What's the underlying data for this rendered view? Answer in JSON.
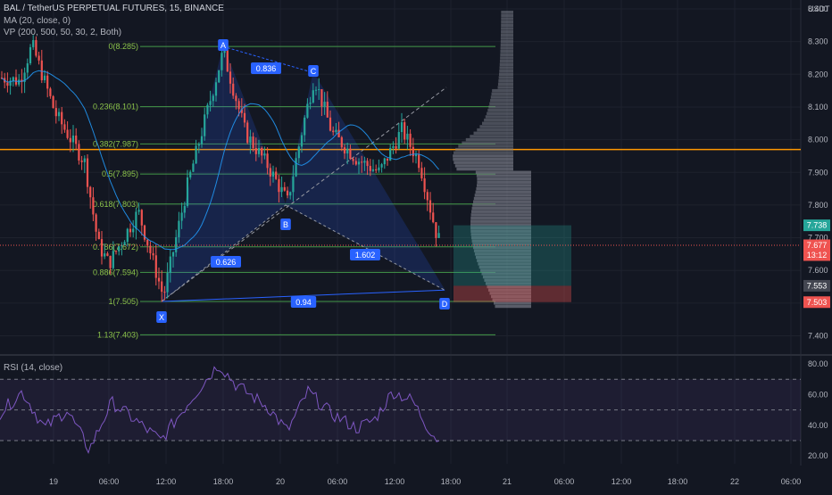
{
  "header": {
    "symbol": "BAL / TetherUS PERPETUAL FUTURES, 15, BINANCE",
    "ma_legend": "MA (20, close, 0)",
    "vp_legend": "VP (200, 500, 50, 30, 2, Both)",
    "rsi_legend": "RSI (14, close)",
    "currency": "USDT"
  },
  "colors": {
    "background": "#131722",
    "candle_up": "#26a69a",
    "candle_down": "#ef5350",
    "fib_line": "#4caf50",
    "fib_label": "#8bc34a",
    "harmonic_fill": "#2962ff",
    "ma_line": "#2196f3",
    "vp_bar": "#787b86",
    "rsi_line": "#7e57c2",
    "orange_line": "#ff9800",
    "target_zone": "#26a69a",
    "stop_zone": "#ef5350"
  },
  "chart_data": {
    "type": "candlestick",
    "symbol": "BALUSDT",
    "timeframe": "15",
    "ylim": [
      7.35,
      8.42
    ],
    "y_ticks": [
      "8.400",
      "8.300",
      "8.200",
      "8.100",
      "8.000",
      "7.900",
      "7.800",
      "7.700",
      "7.600",
      "7.500",
      "7.400"
    ],
    "x_ticks": [
      "19",
      "06:00",
      "12:00",
      "18:00",
      "20",
      "06:00",
      "12:00",
      "18:00",
      "21",
      "06:00",
      "12:00",
      "18:00",
      "22",
      "06:00"
    ],
    "fib_levels": [
      {
        "label": "0(8.285)",
        "value": 8.285
      },
      {
        "label": "0.236(8.101)",
        "value": 8.101
      },
      {
        "label": "0.382(7.987)",
        "value": 7.987
      },
      {
        "label": "0.5(7.895)",
        "value": 7.895
      },
      {
        "label": "0.618(7.803)",
        "value": 7.803
      },
      {
        "label": "0.786(7.672)",
        "value": 7.672
      },
      {
        "label": "0.886(7.594)",
        "value": 7.594
      },
      {
        "label": "1(7.505)",
        "value": 7.505
      },
      {
        "label": "1.13(7.403)",
        "value": 7.403
      }
    ],
    "orange_level": 7.97,
    "harmonic_points": [
      {
        "name": "X",
        "value": 7.505
      },
      {
        "name": "A",
        "value": 8.285
      },
      {
        "name": "B",
        "value": 7.8
      },
      {
        "name": "C",
        "value": 8.205
      },
      {
        "name": "D",
        "value": 7.54
      }
    ],
    "ratios": [
      "0.836",
      "0.626",
      "1.602",
      "0.94"
    ],
    "price_tags": [
      {
        "label": "7.738",
        "value": 7.738,
        "color": "#26a69a"
      },
      {
        "label": "7.677",
        "value": 7.677,
        "color": "#ef5350",
        "sub": "13:12"
      },
      {
        "label": "7.553",
        "value": 7.553,
        "color": "#434651"
      },
      {
        "label": "7.503",
        "value": 7.503,
        "color": "#ef5350"
      }
    ],
    "position": {
      "target": 7.738,
      "entry": 7.553,
      "stop": 7.503
    },
    "rsi": {
      "ylim": [
        17,
        83
      ],
      "ticks": [
        "80.00",
        "60.00",
        "40.00",
        "20.00"
      ],
      "upper_band": 70,
      "mid_band": 50,
      "lower_band": 30
    }
  }
}
